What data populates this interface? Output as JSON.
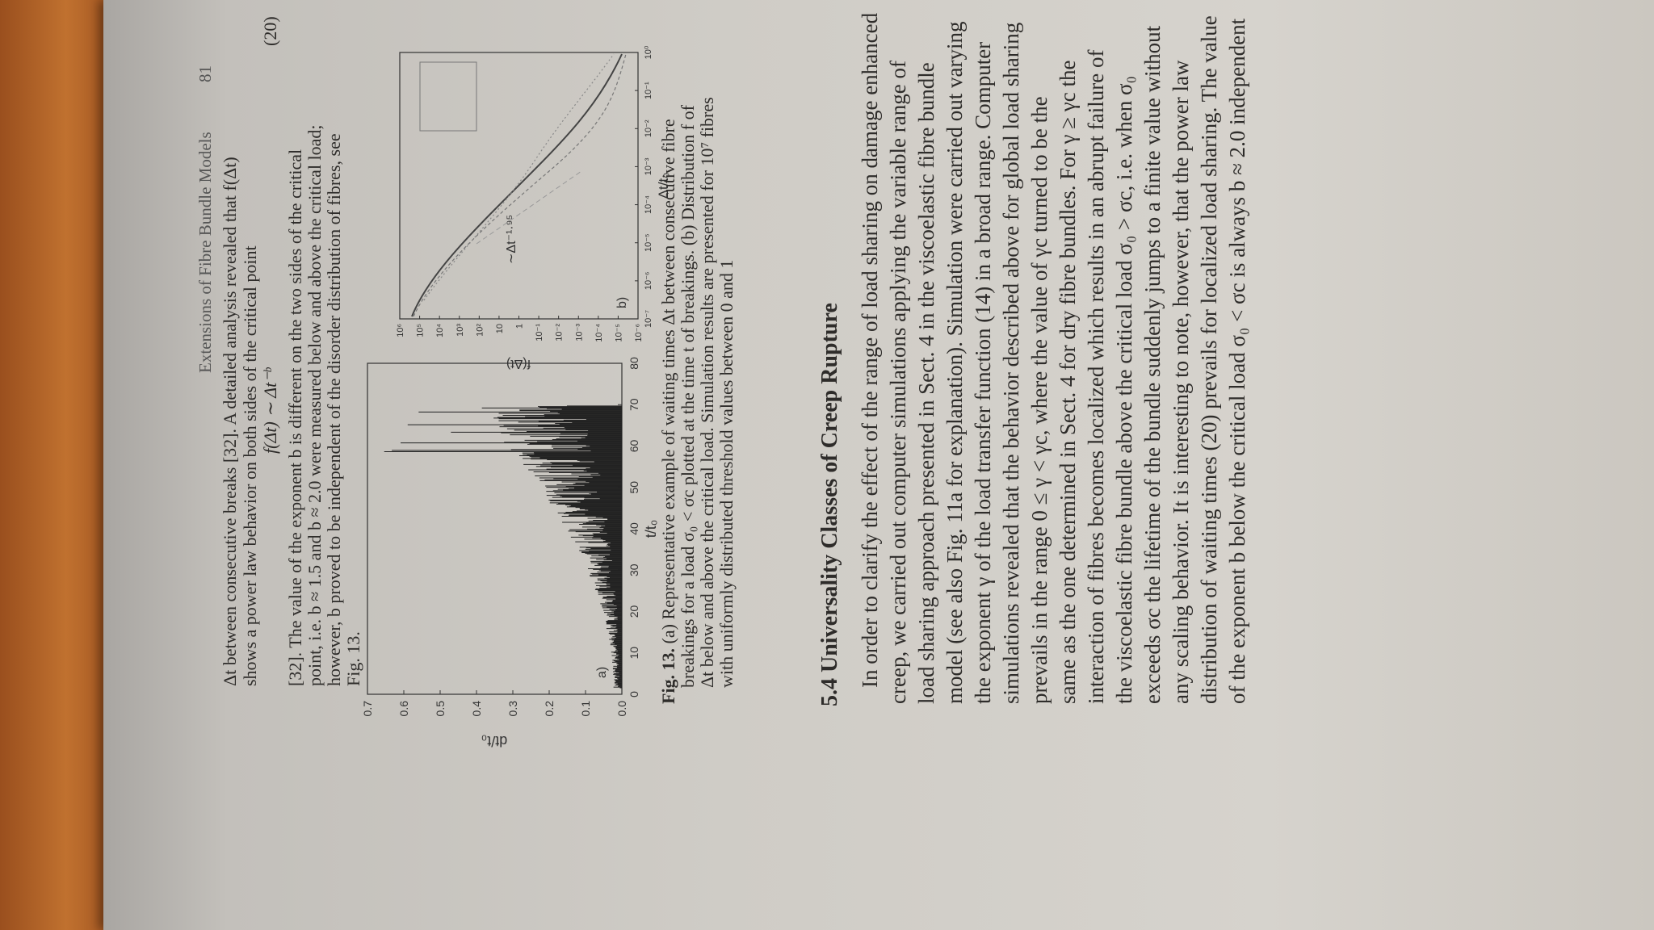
{
  "header": {
    "running_title": "Extensions of Fibre Bundle Models",
    "page_number": "81"
  },
  "intro_lines": [
    "Δt between consecutive breaks [32]. A detailed analysis revealed that f(Δt)",
    "shows a power law behavior on both sides of the critical point"
  ],
  "equation": {
    "formula": "f(Δt) ∼ Δt⁻ᵇ",
    "number": "(20)"
  },
  "footnote_lines": [
    "[32]. The value of the exponent b is different on the two sides of the critical",
    "point, i.e. b ≈ 1.5 and b ≈ 2.0 were measured below and above the critical load;",
    "however, b proved to be independent of the disorder distribution of fibres, see",
    "Fig. 13."
  ],
  "figure_a": {
    "panel_label": "a)",
    "y_label": "dt/t₀",
    "x_label": "t/t₀",
    "y_ticks": [
      "0.0",
      "0.1",
      "0.2",
      "0.3",
      "0.4",
      "0.5",
      "0.6",
      "0.7"
    ],
    "x_ticks": [
      "0",
      "10",
      "20",
      "30",
      "40",
      "50",
      "60",
      "70",
      "80"
    ]
  },
  "figure_b": {
    "panel_label": "b)",
    "y_label": "f(Δt)",
    "x_label": "Δt/t₀",
    "annotation": "∼Δt⁻¹·⁹⁵",
    "y_ticks": [
      "10⁶",
      "10⁵",
      "10⁴",
      "10³",
      "10²",
      "10",
      "1",
      "10⁻¹",
      "10⁻²",
      "10⁻³",
      "10⁻⁴",
      "10⁻⁵",
      "10⁻⁶"
    ],
    "x_ticks": [
      "10⁻⁷",
      "10⁻⁶",
      "10⁻⁵",
      "10⁻⁴",
      "10⁻³",
      "10⁻²",
      "10⁻¹",
      "10⁰"
    ]
  },
  "caption": {
    "label": "Fig. 13.",
    "lines": [
      " (a) Representative example of waiting times Δt between consecutive fibre",
      "breakings for a load σ₀ < σc plotted at the time t of breakings. (b) Distribution f of",
      "Δt below and above the critical load. Simulation results are presented for 10⁷ fibres",
      "with uniformly distributed threshold values between 0 and 1"
    ]
  },
  "section_heading": "5.4 Universality Classes of Creep Rupture",
  "body_lines": [
    "In order to clarify the effect of the range of load sharing on damage enhanced",
    "creep, we carried out computer simulations applying the variable range of",
    "load sharing approach presented in Sect. 4 in the viscoelastic fibre bundle",
    "model (see also Fig. 11a for explanation). Simulation were carried out varying",
    "the exponent γ of the load transfer function (14) in a broad range. Computer",
    "simulations revealed that the behavior described above for global load sharing",
    "prevails in the range 0 ≤ γ < γc, where the value of γc turned to be the",
    "same as the one determined in Sect. 4 for dry fibre bundles. For γ ≥ γc the",
    "interaction of fibres becomes localized which results in an abrupt failure of",
    "the viscoelastic fibre bundle above the critical load σ₀ > σc, i.e. when σ₀",
    "exceeds σc the lifetime of the bundle suddenly jumps to a finite value without",
    "any scaling behavior. It is interesting to note, however, that the power law",
    "distribution of waiting times (20) prevails for localized load sharing. The value",
    "of the exponent b below the critical load σ₀ < σc is always b ≈ 2.0 independent"
  ]
}
